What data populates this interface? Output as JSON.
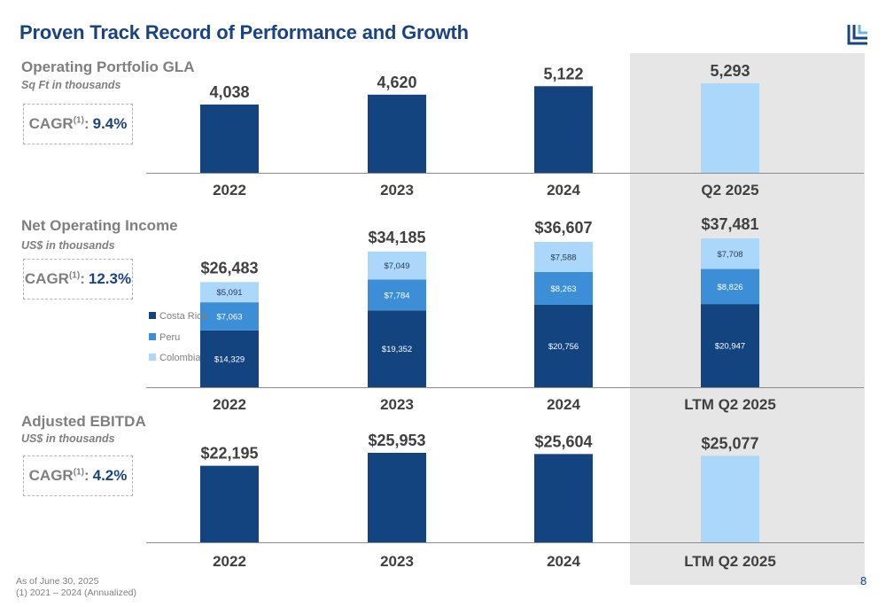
{
  "title": "Proven Track Record of Performance and Growth",
  "colors": {
    "primary": "#144480",
    "highlight": "#abd8fa",
    "costa_rica": "#144480",
    "peru": "#3c8fd6",
    "colombia": "#abd8fa",
    "band": "#e6e6e6"
  },
  "logo_icon": "company-logo-icon",
  "sections": {
    "gla": {
      "title": "Operating Portfolio GLA",
      "subtitle": "Sq Ft in thousands",
      "cagr_label": "CAGR",
      "cagr_sup": "(1)",
      "cagr_colon": ":",
      "cagr_value": "9.4%"
    },
    "noi": {
      "title": "Net Operating Income",
      "subtitle": "US$ in thousands",
      "cagr_label": "CAGR",
      "cagr_sup": "(1)",
      "cagr_colon": ":",
      "cagr_value": "12.3%"
    },
    "ebitda": {
      "title": "Adjusted EBITDA",
      "subtitle": "US$ in thousands",
      "cagr_label": "CAGR",
      "cagr_sup": "(1)",
      "cagr_colon": ":",
      "cagr_value": "4.2%"
    }
  },
  "chart_data": [
    {
      "type": "bar",
      "categories": [
        "2022",
        "2023",
        "2024",
        "Q2 2025"
      ],
      "values": [
        4038,
        4620,
        5122,
        5293
      ],
      "value_labels": [
        "4,038",
        "4,620",
        "5,122",
        "5,293"
      ],
      "highlight_index": 3,
      "title": "Operating Portfolio GLA",
      "ylabel": "Sq Ft in thousands",
      "ylim": [
        0,
        5600
      ]
    },
    {
      "type": "bar",
      "stacked": true,
      "categories": [
        "2022",
        "2023",
        "2024",
        "LTM Q2 2025"
      ],
      "series": [
        {
          "name": "Costa Rica",
          "values": [
            14329,
            19352,
            20756,
            20947
          ],
          "labels": [
            "$14,329",
            "$19,352",
            "$20,756",
            "$20,947"
          ]
        },
        {
          "name": "Peru",
          "values": [
            7063,
            7784,
            8263,
            8826
          ],
          "labels": [
            "$7,063",
            "$7,784",
            "$8,263",
            "$8,826"
          ]
        },
        {
          "name": "Colombia",
          "values": [
            5091,
            7049,
            7588,
            7708
          ],
          "labels": [
            "$5,091",
            "$7,049",
            "$7,588",
            "$7,708"
          ]
        }
      ],
      "totals": [
        26483,
        34185,
        36607,
        37481
      ],
      "total_labels": [
        "$26,483",
        "$34,185",
        "$36,607",
        "$37,481"
      ],
      "title": "Net Operating Income",
      "ylabel": "US$ in thousands",
      "legend": "left",
      "ylim": [
        0,
        40000
      ]
    },
    {
      "type": "bar",
      "categories": [
        "2022",
        "2023",
        "2024",
        "LTM Q2 2025"
      ],
      "values": [
        22195,
        25953,
        25604,
        25077
      ],
      "value_labels": [
        "$22,195",
        "$25,953",
        "$25,604",
        "$25,077"
      ],
      "highlight_index": 3,
      "title": "Adjusted EBITDA",
      "ylabel": "US$ in thousands",
      "ylim": [
        0,
        26500
      ]
    }
  ],
  "footnotes": [
    "As of June 30, 2025",
    "(1) 2021 – 2024 (Annualized)"
  ],
  "page_number": "8"
}
